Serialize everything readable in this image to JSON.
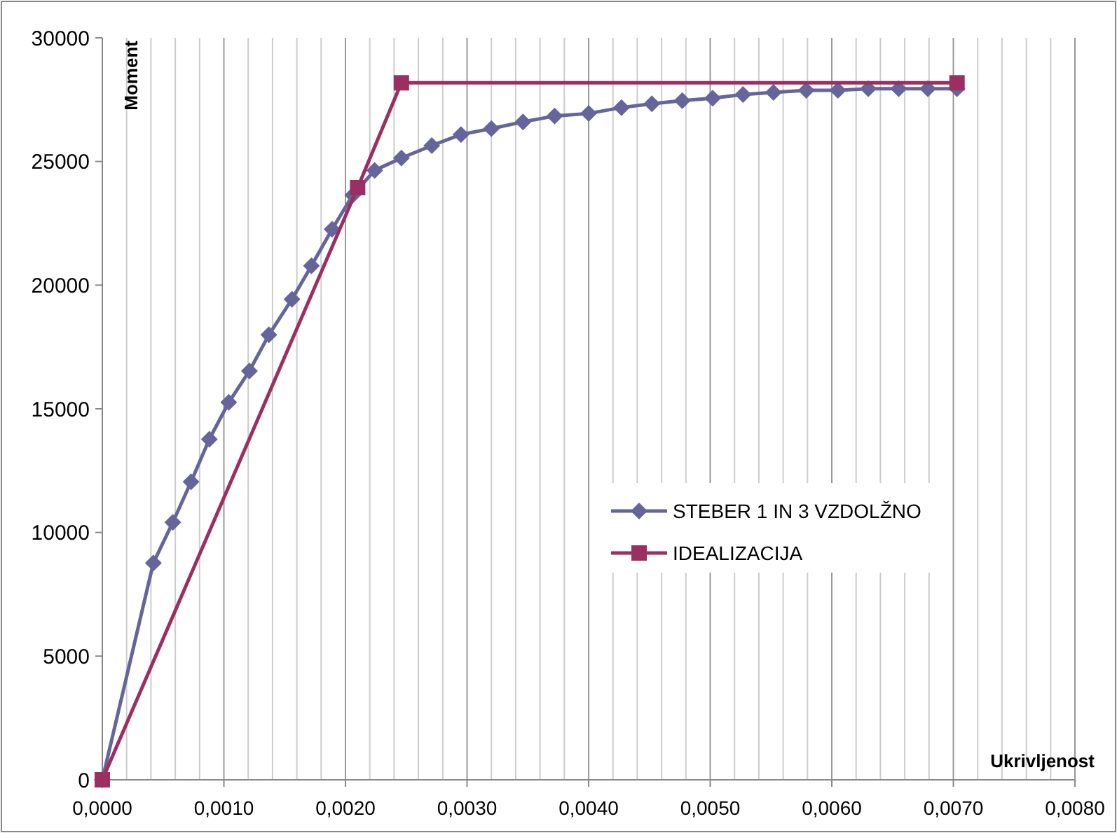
{
  "chart_data": {
    "type": "line",
    "xlabel": "Ukrivljenost",
    "ylabel": "Moment",
    "xlim": [
      0,
      0.008
    ],
    "ylim": [
      0,
      30000
    ],
    "xticks": [
      {
        "value": 0,
        "label": "0,0000"
      },
      {
        "value": 0.0002,
        "label": null
      },
      {
        "value": 0.0004,
        "label": null
      },
      {
        "value": 0.0006,
        "label": null
      },
      {
        "value": 0.0008,
        "label": null
      },
      {
        "value": 0.001,
        "label": "0,0010"
      },
      {
        "value": 0.0012,
        "label": null
      },
      {
        "value": 0.0014,
        "label": null
      },
      {
        "value": 0.0016,
        "label": null
      },
      {
        "value": 0.0018,
        "label": null
      },
      {
        "value": 0.002,
        "label": "0,0020"
      },
      {
        "value": 0.0022,
        "label": null
      },
      {
        "value": 0.0024,
        "label": null
      },
      {
        "value": 0.0026,
        "label": null
      },
      {
        "value": 0.0028,
        "label": null
      },
      {
        "value": 0.003,
        "label": "0,0030"
      },
      {
        "value": 0.0032,
        "label": null
      },
      {
        "value": 0.0034,
        "label": null
      },
      {
        "value": 0.0036,
        "label": null
      },
      {
        "value": 0.0038,
        "label": null
      },
      {
        "value": 0.004,
        "label": "0,0040"
      },
      {
        "value": 0.0042,
        "label": null
      },
      {
        "value": 0.0044,
        "label": null
      },
      {
        "value": 0.0046,
        "label": null
      },
      {
        "value": 0.0048,
        "label": null
      },
      {
        "value": 0.005,
        "label": "0,0050"
      },
      {
        "value": 0.0052,
        "label": null
      },
      {
        "value": 0.0054,
        "label": null
      },
      {
        "value": 0.0056,
        "label": null
      },
      {
        "value": 0.0058,
        "label": null
      },
      {
        "value": 0.006,
        "label": "0,0060"
      },
      {
        "value": 0.0062,
        "label": null
      },
      {
        "value": 0.0064,
        "label": null
      },
      {
        "value": 0.0066,
        "label": null
      },
      {
        "value": 0.0068,
        "label": null
      },
      {
        "value": 0.007,
        "label": "0,0070"
      },
      {
        "value": 0.0072,
        "label": null
      },
      {
        "value": 0.0074,
        "label": null
      },
      {
        "value": 0.0076,
        "label": null
      },
      {
        "value": 0.0078,
        "label": null
      },
      {
        "value": 0.008,
        "label": "0,0080"
      }
    ],
    "yticks": [
      0,
      5000,
      10000,
      15000,
      20000,
      25000,
      30000
    ],
    "grid": "x",
    "legend": "right",
    "line_style": "solid",
    "series": [
      {
        "name": "STEBER 1 IN 3 VZDOLŽNO",
        "color": "#65659b",
        "marker": "diamond",
        "x": [
          0,
          0.00042,
          0.00058,
          0.00073,
          0.00088,
          0.00104,
          0.00121,
          0.00137,
          0.00156,
          0.00172,
          0.00189,
          0.00206,
          0.00224,
          0.00246,
          0.00271,
          0.00295,
          0.0032,
          0.00346,
          0.00372,
          0.004,
          0.00427,
          0.00452,
          0.00477,
          0.00502,
          0.00527,
          0.00552,
          0.00579,
          0.00605,
          0.0063,
          0.00655,
          0.00679,
          0.00703
        ],
        "values": [
          0,
          8770,
          10410,
          12050,
          13770,
          15260,
          16530,
          17990,
          19430,
          20780,
          22260,
          23640,
          24640,
          25140,
          25640,
          26090,
          26330,
          26600,
          26840,
          26940,
          27180,
          27330,
          27460,
          27560,
          27710,
          27790,
          27880,
          27880,
          27940,
          27940,
          27940,
          27940
        ]
      },
      {
        "name": "IDEALIZACIJA",
        "color": "#9b2f62",
        "marker": "square",
        "x": [
          0,
          0.0021,
          0.00246,
          0.00703
        ],
        "values": [
          0,
          23940,
          28180,
          28180
        ]
      }
    ]
  }
}
